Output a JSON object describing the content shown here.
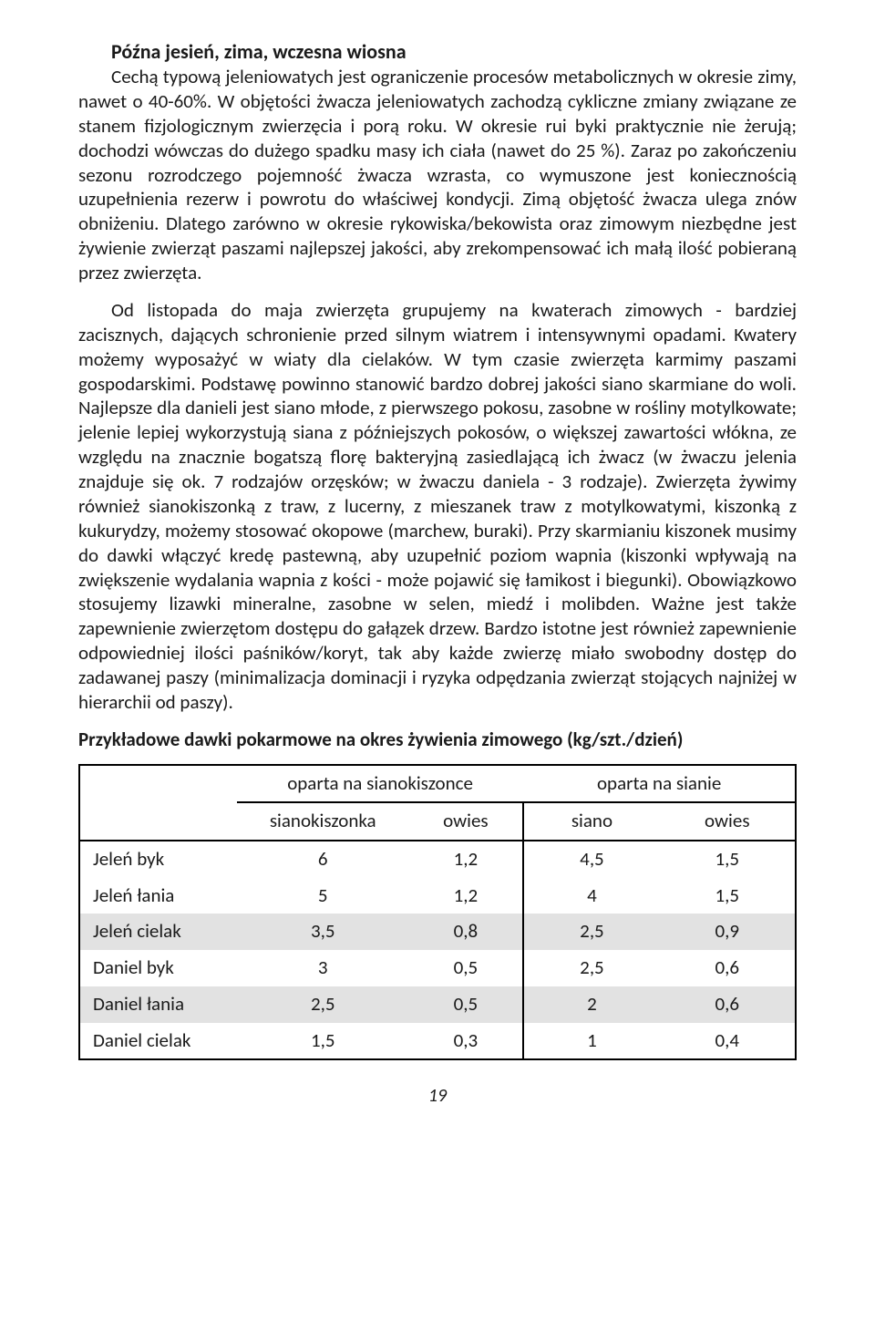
{
  "heading": "Późna jesień, zima, wczesna wiosna",
  "paragraph1": "Cechą typową jeleniowatych jest ograniczenie procesów metabolicznych w okresie zimy, nawet o 40-60%. W objętości żwacza jeleniowatych zachodzą cykliczne zmiany związane ze stanem fizjologicznym zwierzęcia i porą roku. W okresie rui byki praktycznie nie żerują; dochodzi wówczas do dużego spadku masy ich ciała (nawet do 25 %). Zaraz po zakończeniu sezonu rozrodczego pojemność żwacza wzrasta, co wymuszone jest koniecznością uzupełnienia rezerw i powrotu do właściwej kondycji. Zimą objętość żwacza ulega znów obniżeniu. Dlatego zarówno w okresie rykowiska/bekowista oraz zimowym niezbędne jest żywienie zwierząt paszami najlepszej jakości, aby zrekompensować ich małą ilość pobieraną przez zwierzęta.",
  "paragraph2": "Od listopada do maja zwierzęta grupujemy na kwaterach zimowych - bardziej zacisznych, dających schronienie przed silnym wiatrem i intensywnymi opadami. Kwatery możemy wyposażyć w wiaty dla cielaków. W tym czasie zwierzęta karmimy paszami gospodarskimi. Podstawę powinno stanowić bardzo dobrej jakości siano skarmiane do woli. Najlepsze dla danieli jest siano młode, z pierwszego pokosu, zasobne w rośliny motylkowate; jelenie lepiej wykorzystują siana z późniejszych pokosów, o większej zawartości włókna, ze względu na znacznie bogatszą florę bakteryjną zasiedlającą ich żwacz (w żwaczu jelenia znajduje się ok. 7 rodzajów orzęsków; w żwaczu daniela - 3 rodzaje). Zwierzęta żywimy również sianokiszonką z traw, z lucerny, z mieszanek traw z motylkowatymi, kiszonką z kukurydzy, możemy stosować okopowe (marchew, buraki). Przy skarmianiu kiszonek musimy do dawki włączyć kredę pastewną, aby uzupełnić poziom wapnia (kiszonki wpływają na zwiększenie wydalania wapnia z kości - może pojawić się łamikost i biegunki). Obowiązkowo stosujemy lizawki mineralne, zasobne w selen, miedź i molibden. Ważne jest także zapewnienie zwierzętom dostępu do gałązek drzew. Bardzo istotne jest również zapewnienie odpowiedniej ilości paśników/koryt, tak aby każde zwierzę miało swobodny dostęp do zadawanej paszy (minimalizacja dominacji i ryzyka odpędzania zwierząt stojących najniżej w hierarchii od paszy).",
  "table": {
    "title": "Przykładowe dawki pokarmowe na okres żywienia zimowego (kg/szt./dzień)",
    "group_headers": [
      "oparta na sianokiszonce",
      "oparta na sianie"
    ],
    "sub_headers": [
      "sianokiszonka",
      "owies",
      "siano",
      "owies"
    ],
    "rows": [
      {
        "label": "Jeleń byk",
        "v": [
          "6",
          "1,2",
          "4,5",
          "1,5"
        ],
        "shade": false
      },
      {
        "label": "Jeleń łania",
        "v": [
          "5",
          "1,2",
          "4",
          "1,5"
        ],
        "shade": false
      },
      {
        "label": "Jeleń cielak",
        "v": [
          "3,5",
          "0,8",
          "2,5",
          "0,9"
        ],
        "shade": true
      },
      {
        "label": "Daniel byk",
        "v": [
          "3",
          "0,5",
          "2,5",
          "0,6"
        ],
        "shade": false
      },
      {
        "label": "Daniel łania",
        "v": [
          "2,5",
          "0,5",
          "2",
          "0,6"
        ],
        "shade": true
      },
      {
        "label": "Daniel cielak",
        "v": [
          "1,5",
          "0,3",
          "1",
          "0,4"
        ],
        "shade": false
      }
    ],
    "colors": {
      "shade_bg": "#e2e2e2",
      "border": "#000000",
      "text": "#1a1a1a"
    },
    "col_widths_pct": [
      22,
      24,
      16,
      19,
      19
    ]
  },
  "page_number": "19"
}
